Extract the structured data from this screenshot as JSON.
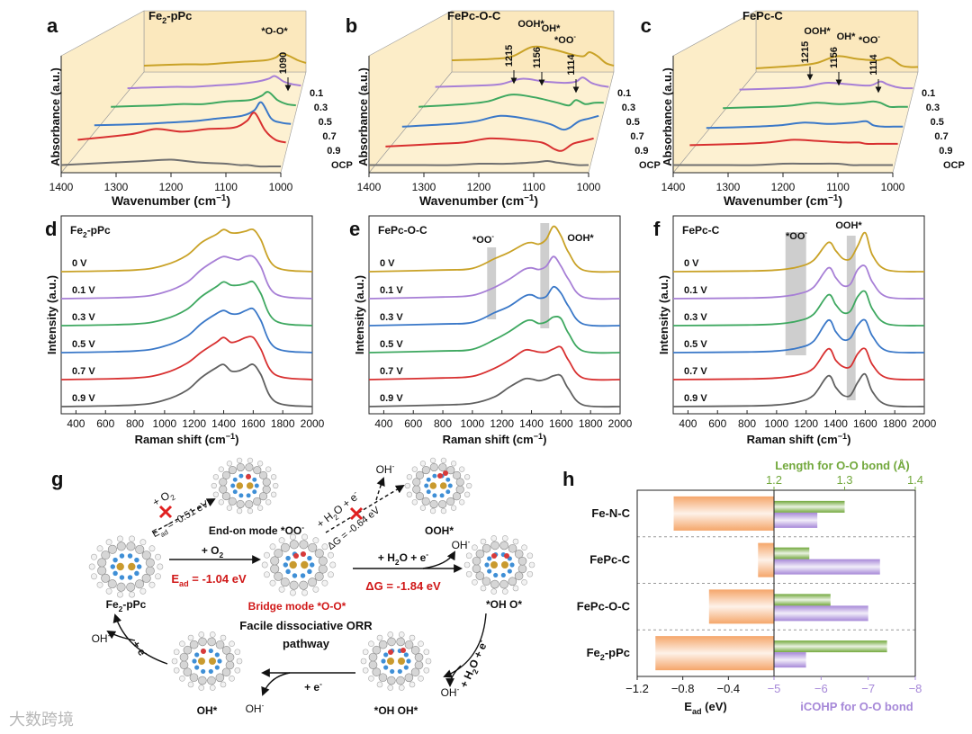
{
  "panels_3d": [
    {
      "label": "a",
      "title": [
        "Fe",
        {
          "sub": "2"
        },
        "-pPc"
      ],
      "xlabel": [
        "Wavenumber (cm",
        {
          "sup": "−1"
        },
        ")"
      ],
      "ylabel": "Absorbance (a.u.)",
      "xlim": [
        1400,
        1000
      ],
      "xticks": [
        1400,
        1300,
        1200,
        1100,
        1000
      ],
      "x": [
        1400,
        1300,
        1250,
        1200,
        1150,
        1100,
        1075,
        1060,
        1040,
        1020,
        1000
      ],
      "series": [
        {
          "name": "0.1",
          "color": "#c9a227",
          "values": [
            0.8,
            0.9,
            0.9,
            1.0,
            1.1,
            1.2,
            1.4,
            1.7,
            1.5,
            1.2,
            1.0
          ]
        },
        {
          "name": "0.3",
          "color": "#a77fd6",
          "values": [
            0.5,
            0.6,
            0.6,
            0.7,
            0.8,
            1.0,
            1.2,
            1.4,
            1.0,
            0.8,
            0.7
          ]
        },
        {
          "name": "0.5",
          "color": "#3ea860",
          "values": [
            0.5,
            0.6,
            0.7,
            0.7,
            0.9,
            1.0,
            1.3,
            1.6,
            1.0,
            0.7,
            0.6
          ]
        },
        {
          "name": "0.7",
          "color": "#3a78c8",
          "values": [
            0.5,
            0.6,
            0.7,
            0.8,
            1.0,
            1.2,
            1.6,
            2.2,
            1.0,
            0.7,
            0.6
          ]
        },
        {
          "name": "0.9",
          "color": "#d83030",
          "values": [
            0.8,
            1.2,
            1.6,
            1.4,
            1.6,
            1.7,
            2.2,
            2.8,
            1.5,
            0.8,
            0.6
          ]
        },
        {
          "name": "OCP",
          "color": "#707070",
          "values": [
            0.3,
            0.5,
            0.6,
            0.7,
            0.5,
            0.4,
            0.3,
            0.3,
            0.2,
            0.2,
            0.2
          ]
        }
      ],
      "annotations": [
        "*O-O*",
        "1090"
      ]
    },
    {
      "label": "b",
      "title": "FePc-O-C",
      "xlabel": [
        "Wavenumber (cm",
        {
          "sup": "−1"
        },
        ")"
      ],
      "ylabel": "Absorbance (a.u.)",
      "xlim": [
        1400,
        1000
      ],
      "xticks": [
        1400,
        1300,
        1200,
        1100,
        1000
      ],
      "x": [
        1400,
        1300,
        1250,
        1200,
        1150,
        1100,
        1075,
        1060,
        1040,
        1020,
        1000
      ],
      "series": [
        {
          "name": "0.1",
          "color": "#c9a227",
          "values": [
            1.2,
            1.3,
            1.5,
            2.2,
            2.0,
            1.6,
            1.5,
            1.8,
            1.5,
            1.0,
            0.8
          ]
        },
        {
          "name": "0.3",
          "color": "#a77fd6",
          "values": [
            0.6,
            0.7,
            0.8,
            1.2,
            1.0,
            0.9,
            1.0,
            1.3,
            0.9,
            0.7,
            0.6
          ]
        },
        {
          "name": "0.5",
          "color": "#3ea860",
          "values": [
            0.5,
            0.7,
            0.9,
            1.4,
            1.2,
            0.8,
            0.6,
            1.0,
            0.7,
            0.8,
            0.8
          ]
        },
        {
          "name": "0.7",
          "color": "#3a78c8",
          "values": [
            0.4,
            0.6,
            0.8,
            1.2,
            1.0,
            0.6,
            0.2,
            0.3,
            0.8,
            1.0,
            1.2
          ]
        },
        {
          "name": "0.9",
          "color": "#d83030",
          "values": [
            0.3,
            0.5,
            0.6,
            0.9,
            0.8,
            0.6,
            0.1,
            0.0,
            0.5,
            0.7,
            0.9
          ]
        },
        {
          "name": "OCP",
          "color": "#707070",
          "values": [
            0.3,
            0.3,
            0.3,
            0.4,
            0.4,
            0.5,
            0.6,
            0.5,
            0.4,
            0.3,
            0.3
          ]
        }
      ],
      "annotations": [
        "1215",
        "OOH*",
        "1156",
        "OH*",
        [
          "*OO",
          {
            "sup": "-"
          }
        ],
        "1114"
      ]
    },
    {
      "label": "c",
      "title": "FePc-C",
      "xlabel": [
        "Wavenumber (cm",
        {
          "sup": "−1"
        },
        ")"
      ],
      "ylabel": "Absorbance (a.u.)",
      "xlim": [
        1400,
        1000
      ],
      "xticks": [
        1400,
        1300,
        1200,
        1100,
        1000
      ],
      "x": [
        1400,
        1300,
        1250,
        1200,
        1150,
        1100,
        1075,
        1060,
        1040,
        1020,
        1000
      ],
      "series": [
        {
          "name": "0.1",
          "color": "#c9a227",
          "values": [
            0.6,
            0.8,
            1.0,
            1.5,
            1.3,
            1.2,
            1.4,
            1.2,
            0.8,
            0.7,
            0.7
          ]
        },
        {
          "name": "0.3",
          "color": "#a77fd6",
          "values": [
            0.4,
            0.5,
            0.6,
            0.9,
            0.8,
            0.7,
            1.0,
            0.8,
            0.6,
            0.5,
            0.5
          ]
        },
        {
          "name": "0.5",
          "color": "#3ea860",
          "values": [
            0.4,
            0.5,
            0.6,
            0.8,
            0.7,
            0.8,
            0.9,
            0.8,
            0.5,
            0.5,
            0.5
          ]
        },
        {
          "name": "0.7",
          "color": "#3a78c8",
          "values": [
            0.3,
            0.4,
            0.5,
            0.7,
            0.6,
            0.7,
            0.8,
            0.5,
            0.4,
            0.4,
            0.4
          ]
        },
        {
          "name": "0.9",
          "color": "#d83030",
          "values": [
            0.4,
            0.5,
            0.6,
            0.8,
            0.7,
            0.6,
            0.6,
            0.5,
            0.5,
            0.5,
            0.5
          ]
        },
        {
          "name": "OCP",
          "color": "#707070",
          "values": [
            0.3,
            0.3,
            0.3,
            0.4,
            0.4,
            0.4,
            0.3,
            0.3,
            0.3,
            0.3,
            0.3
          ]
        }
      ],
      "annotations": [
        "1215",
        "OOH*",
        "1156",
        "OH*",
        [
          "*OO",
          {
            "sup": "-"
          }
        ],
        "1114"
      ]
    }
  ],
  "raman": [
    {
      "label": "d",
      "title": [
        "Fe",
        {
          "sub": "2"
        },
        "-pPc"
      ],
      "xlabel": [
        "Raman shift (cm",
        {
          "sup": "−1"
        },
        ")"
      ],
      "ylabel": "Intensity (a.u.)",
      "xlim": [
        300,
        2000
      ],
      "xticks": [
        400,
        600,
        800,
        1000,
        1200,
        1400,
        1600,
        1800,
        2000
      ],
      "x": [
        300,
        800,
        1000,
        1150,
        1250,
        1350,
        1400,
        1450,
        1500,
        1550,
        1600,
        1650,
        1750,
        2000
      ],
      "series": [
        {
          "name": "0 V",
          "color": "#c9a227",
          "values": [
            0,
            0.05,
            0.2,
            0.5,
            0.9,
            1.15,
            1.3,
            1.2,
            1.2,
            1.25,
            1.3,
            1.0,
            0.15,
            0
          ]
        },
        {
          "name": "0.1 V",
          "color": "#a77fd6",
          "values": [
            0,
            0.05,
            0.2,
            0.5,
            0.9,
            1.2,
            1.3,
            1.25,
            1.2,
            1.3,
            1.3,
            1.0,
            0.15,
            0
          ]
        },
        {
          "name": "0.3 V",
          "color": "#3ea860",
          "values": [
            0,
            0.05,
            0.2,
            0.5,
            0.9,
            1.2,
            1.35,
            1.25,
            1.25,
            1.3,
            1.35,
            1.0,
            0.15,
            0
          ]
        },
        {
          "name": "0.5 V",
          "color": "#3a78c8",
          "values": [
            0,
            0.05,
            0.2,
            0.5,
            0.9,
            1.2,
            1.3,
            1.2,
            1.2,
            1.3,
            1.35,
            1.0,
            0.15,
            0
          ]
        },
        {
          "name": "0.7 V",
          "color": "#d83030",
          "values": [
            0,
            0.05,
            0.2,
            0.5,
            0.85,
            1.15,
            1.3,
            1.15,
            1.2,
            1.3,
            1.3,
            0.95,
            0.15,
            0
          ]
        },
        {
          "name": "0.9 V",
          "color": "#606060",
          "values": [
            0,
            0.05,
            0.2,
            0.5,
            0.9,
            1.2,
            1.3,
            1.1,
            1.1,
            1.2,
            1.3,
            1.0,
            0.15,
            0
          ]
        }
      ],
      "bands": [],
      "annotations": []
    },
    {
      "label": "e",
      "title": "FePc-O-C",
      "xlabel": [
        "Raman shift (cm",
        {
          "sup": "−1"
        },
        ")"
      ],
      "ylabel": "Intensity (a.u.)",
      "xlim": [
        300,
        2000
      ],
      "xticks": [
        400,
        600,
        800,
        1000,
        1200,
        1400,
        1600,
        1800,
        2000
      ],
      "x": [
        300,
        800,
        1000,
        1150,
        1250,
        1350,
        1400,
        1450,
        1500,
        1550,
        1600,
        1650,
        1750,
        2000
      ],
      "series": [
        {
          "name": "0 V",
          "color": "#c9a227",
          "values": [
            0,
            0.05,
            0.1,
            0.4,
            0.6,
            0.85,
            0.9,
            0.85,
            1.0,
            1.4,
            1.1,
            0.6,
            0.05,
            0
          ]
        },
        {
          "name": "0.1 V",
          "color": "#a77fd6",
          "values": [
            0,
            0.05,
            0.1,
            0.35,
            0.6,
            0.9,
            0.95,
            0.9,
            1.0,
            1.3,
            1.0,
            0.6,
            0.05,
            0
          ]
        },
        {
          "name": "0.3 V",
          "color": "#3a78c8",
          "values": [
            0,
            0.05,
            0.1,
            0.4,
            0.6,
            0.9,
            0.95,
            0.85,
            0.9,
            1.2,
            1.0,
            0.6,
            0.05,
            0
          ]
        },
        {
          "name": "0.5 V",
          "color": "#3ea860",
          "values": [
            0,
            0.05,
            0.1,
            0.4,
            0.65,
            0.95,
            1.0,
            0.9,
            0.95,
            1.1,
            1.05,
            0.6,
            0.05,
            0
          ]
        },
        {
          "name": "0.7 V",
          "color": "#d83030",
          "values": [
            0,
            0.05,
            0.1,
            0.35,
            0.6,
            0.9,
            0.9,
            0.85,
            0.85,
            0.95,
            1.0,
            0.6,
            0.05,
            0
          ]
        },
        {
          "name": "0.9 V",
          "color": "#606060",
          "values": [
            0,
            0.05,
            0.1,
            0.3,
            0.6,
            0.85,
            0.85,
            0.8,
            0.85,
            0.95,
            0.95,
            0.55,
            0.05,
            0
          ]
        }
      ],
      "bands": [
        [
          1100,
          1160
        ],
        [
          1460,
          1520
        ]
      ],
      "annotations": [
        [
          "*OO",
          {
            "sup": "-"
          }
        ],
        "OOH*"
      ]
    },
    {
      "label": "f",
      "title": "FePc-C",
      "xlabel": [
        "Raman shift (cm",
        {
          "sup": "−1"
        },
        ")"
      ],
      "ylabel": "Intensity (a.u.)",
      "xlim": [
        300,
        2000
      ],
      "xticks": [
        400,
        600,
        800,
        1000,
        1200,
        1400,
        1600,
        1800,
        2000
      ],
      "x": [
        300,
        800,
        1000,
        1150,
        1250,
        1350,
        1400,
        1450,
        1500,
        1550,
        1600,
        1650,
        1750,
        2000
      ],
      "series": [
        {
          "name": "0 V",
          "color": "#c9a227",
          "values": [
            0,
            0.02,
            0.05,
            0.15,
            0.35,
            0.9,
            0.65,
            0.4,
            0.4,
            0.8,
            1.2,
            0.5,
            0.05,
            0
          ]
        },
        {
          "name": "0.1 V",
          "color": "#a77fd6",
          "values": [
            0,
            0.02,
            0.05,
            0.15,
            0.35,
            0.95,
            0.65,
            0.4,
            0.45,
            0.9,
            1.0,
            0.5,
            0.05,
            0
          ]
        },
        {
          "name": "0.3 V",
          "color": "#3ea860",
          "values": [
            0,
            0.02,
            0.05,
            0.15,
            0.35,
            0.95,
            0.65,
            0.4,
            0.45,
            0.9,
            1.05,
            0.5,
            0.05,
            0
          ]
        },
        {
          "name": "0.5 V",
          "color": "#3a78c8",
          "values": [
            0,
            0.02,
            0.05,
            0.15,
            0.35,
            1.0,
            0.65,
            0.4,
            0.45,
            0.85,
            1.0,
            0.5,
            0.05,
            0
          ]
        },
        {
          "name": "0.7 V",
          "color": "#d83030",
          "values": [
            0,
            0.02,
            0.05,
            0.15,
            0.35,
            0.95,
            0.6,
            0.4,
            0.4,
            0.8,
            0.95,
            0.45,
            0.05,
            0
          ]
        },
        {
          "name": "0.9 V",
          "color": "#606060",
          "values": [
            0,
            0.02,
            0.05,
            0.15,
            0.35,
            0.95,
            0.6,
            0.35,
            0.35,
            0.75,
            1.0,
            0.45,
            0.05,
            0
          ]
        }
      ],
      "bands": [
        [
          1060,
          1200
        ],
        [
          1475,
          1535
        ]
      ],
      "annotations": [
        [
          "*OO",
          {
            "sup": "-"
          }
        ],
        "OOH*"
      ]
    }
  ],
  "scheme": {
    "labels": [
      "g",
      [
        "+ O",
        {
          "sub": "2"
        }
      ],
      [
        "E",
        {
          "sub": "ad"
        },
        " = -0.51 eV"
      ],
      [
        "End-on mode *OO",
        {
          "sup": "-"
        }
      ],
      [
        "+ H",
        {
          "sub": "2"
        },
        "O + e",
        {
          "sup": "-"
        }
      ],
      "ΔG = -0.64 eV",
      [
        "OH",
        {
          "sup": "-"
        }
      ],
      "OOH*",
      [
        "+ O",
        {
          "sub": "2"
        }
      ],
      [
        "E",
        {
          "sub": "ad"
        },
        " = -1.04 eV"
      ],
      "Bridge mode *O-O*",
      [
        "+ H",
        {
          "sub": "2"
        },
        "O + e",
        {
          "sup": "-"
        }
      ],
      "ΔG = -1.84 eV",
      [
        "OH",
        {
          "sup": "-"
        }
      ],
      "*OH  O*",
      [
        "Fe",
        {
          "sub": "2"
        },
        "-pPc"
      ],
      "Facile dissociative ORR",
      "pathway",
      [
        "+ H",
        {
          "sub": "2"
        },
        "O + e",
        {
          "sup": "-"
        }
      ],
      [
        "OH",
        {
          "sup": "-"
        }
      ],
      [
        "+ e",
        {
          "sup": "-"
        }
      ],
      [
        "OH",
        {
          "sup": "-"
        }
      ],
      "*OH  OH*",
      "OH*",
      [
        "+ e",
        {
          "sup": "-"
        }
      ],
      [
        "OH",
        {
          "sup": "-"
        }
      ]
    ]
  },
  "chart_data": {
    "type": "bar",
    "label": "h",
    "orientation": "horizontal",
    "categories": [
      "Fe-N-C",
      "FePc-C",
      "FePc-O-C",
      [
        "Fe",
        {
          "sub": "2"
        },
        "-pPc"
      ]
    ],
    "xlim": [
      -1.2,
      0
    ],
    "xticks": [
      {
        "value": -1.2,
        "label": "−1.2"
      },
      {
        "value": -0.8,
        "label": "−0.8"
      },
      {
        "value": -0.4,
        "label": "−0.4"
      }
    ],
    "x2lim": [
      -5,
      -8
    ],
    "x2ticks": [
      {
        "value": -5,
        "label": "−5"
      },
      {
        "value": -6,
        "label": "−6"
      },
      {
        "value": -7,
        "label": "−7"
      },
      {
        "value": -8,
        "label": "−8"
      }
    ],
    "x3lim": [
      1.2,
      1.4
    ],
    "x3ticks": [
      1.2,
      1.3,
      1.4
    ],
    "series": [
      {
        "name": [
          "E",
          {
            "sub": "ad"
          },
          " (eV)"
        ],
        "color": "#f5a66a",
        "axis": "x",
        "values": [
          -0.88,
          -0.14,
          -0.57,
          -1.04
        ]
      },
      {
        "name": "Length for O-O bond (Å)",
        "color": "#72a83c",
        "axis": "x3",
        "values": [
          1.3,
          1.25,
          1.28,
          1.36
        ]
      },
      {
        "name": "iCOHP for O-O bond",
        "color": "#a688d8",
        "axis": "x2",
        "values": [
          -5.92,
          -7.25,
          -7.0,
          -5.68
        ]
      }
    ]
  },
  "watermark": "大数跨境"
}
